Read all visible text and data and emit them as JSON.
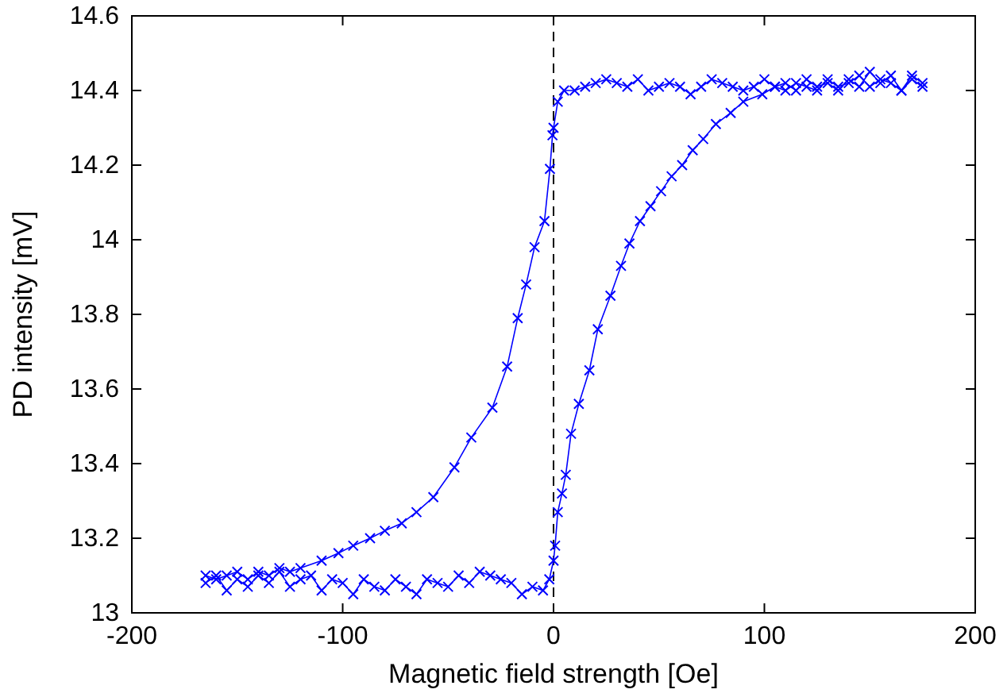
{
  "chart_data": {
    "type": "line",
    "xlabel": "Magnetic field strength [Oe]",
    "ylabel": "PD intensity [mV]",
    "xlim": [
      -200,
      200
    ],
    "xticks": [
      -200,
      -100,
      0,
      100,
      200
    ],
    "ylim": [
      13,
      14.6
    ],
    "yticks": [
      13,
      13.2,
      13.4,
      13.6,
      13.8,
      14,
      14.2,
      14.4,
      14.6
    ],
    "marker": "cross",
    "line_style": "solid",
    "ref_lines": [
      {
        "axis": "x",
        "value": 0,
        "color": "#000000",
        "line_style": "dashed"
      }
    ],
    "series": [
      {
        "color": "#0000ff",
        "x": [
          -165,
          -160,
          -155,
          -150,
          -145,
          -140,
          -135,
          -130,
          -125,
          -120,
          -115,
          -110,
          -105,
          -100,
          -95,
          -90,
          -85,
          -80,
          -75,
          -70,
          -65,
          -60,
          -55,
          -50,
          -45,
          -40,
          -35,
          -30,
          -25,
          -20,
          -15,
          -10,
          -5,
          -2,
          0,
          0.75,
          2,
          4,
          5.8,
          8.3,
          12,
          17,
          21,
          27,
          32,
          36,
          41,
          46,
          51,
          56,
          61,
          66,
          71,
          77,
          84,
          90,
          99,
          105,
          110,
          115,
          120,
          125,
          130,
          135,
          140,
          145,
          150,
          155,
          160,
          165,
          170,
          175
        ],
        "values": [
          13.08,
          13.1,
          13.06,
          13.09,
          13.07,
          13.1,
          13.08,
          13.11,
          13.07,
          13.09,
          13.1,
          13.06,
          13.09,
          13.08,
          13.05,
          13.09,
          13.07,
          13.06,
          13.09,
          13.07,
          13.05,
          13.09,
          13.08,
          13.07,
          13.1,
          13.08,
          13.11,
          13.1,
          13.09,
          13.08,
          13.05,
          13.07,
          13.06,
          13.09,
          13.14,
          13.18,
          13.27,
          13.32,
          13.37,
          13.48,
          13.56,
          13.65,
          13.76,
          13.85,
          13.93,
          13.99,
          14.05,
          14.09,
          14.13,
          14.17,
          14.2,
          14.24,
          14.27,
          14.31,
          14.34,
          14.37,
          14.39,
          14.41,
          14.4,
          14.42,
          14.41,
          14.4,
          14.43,
          14.41,
          14.42,
          14.44,
          14.41,
          14.43,
          14.42,
          14.4,
          14.44,
          14.42
        ]
      },
      {
        "color": "#0000ff",
        "x": [
          175,
          170,
          165,
          160,
          155,
          150,
          145,
          140,
          135,
          130,
          125,
          120,
          115,
          110,
          105,
          100,
          95,
          90,
          85,
          80,
          75,
          70,
          65,
          60,
          55,
          50,
          45,
          40,
          35,
          30,
          25,
          20,
          15,
          10,
          5,
          2,
          0,
          -0.5,
          -1.7,
          -4.3,
          -9,
          -13,
          -17,
          -22,
          -29,
          -39,
          -47,
          -57,
          -65,
          -72,
          -80,
          -87,
          -95,
          -102,
          -110,
          -120,
          -125,
          -130,
          -135,
          -140,
          -145,
          -150,
          -155,
          -160,
          -165
        ],
        "values": [
          14.41,
          14.43,
          14.4,
          14.44,
          14.42,
          14.45,
          14.41,
          14.43,
          14.4,
          14.42,
          14.41,
          14.43,
          14.4,
          14.42,
          14.41,
          14.43,
          14.41,
          14.4,
          14.41,
          14.42,
          14.43,
          14.41,
          14.39,
          14.41,
          14.42,
          14.41,
          14.4,
          14.43,
          14.41,
          14.42,
          14.43,
          14.42,
          14.41,
          14.4,
          14.4,
          14.37,
          14.3,
          14.28,
          14.19,
          14.05,
          13.98,
          13.88,
          13.79,
          13.66,
          13.55,
          13.47,
          13.39,
          13.31,
          13.27,
          13.24,
          13.22,
          13.2,
          13.18,
          13.16,
          13.14,
          13.12,
          13.11,
          13.12,
          13.1,
          13.11,
          13.09,
          13.11,
          13.1,
          13.09,
          13.1
        ]
      }
    ]
  }
}
